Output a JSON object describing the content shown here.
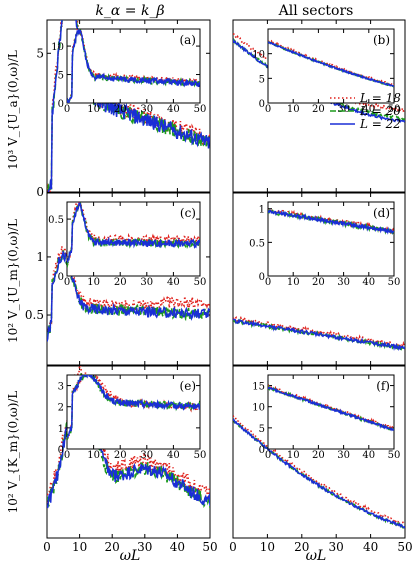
{
  "colors": {
    "L18": "#e0201b",
    "L20": "#1c9a1c",
    "L22": "#1a2ed6",
    "frame": "#000000"
  },
  "column_headers": [
    "k_α = k_β",
    "All sectors"
  ],
  "shared_x": {
    "label": "ωL",
    "ticks": [
      0,
      10,
      20,
      30,
      40,
      50
    ],
    "range": [
      0,
      50
    ]
  },
  "legend": {
    "placement": "inside panel (b), right",
    "entries": [
      "L = 18",
      "L = 20",
      "L = 22"
    ]
  },
  "chart_data": [
    {
      "type": "line",
      "id": "row1",
      "ylabel": "10³ V_{U_a}(0,ω)/L",
      "left": {
        "ylim": [
          0,
          6.2
        ],
        "yticks": [
          0,
          5,
          10
        ]
      },
      "right": {
        "ylim": [
          0,
          6.8
        ],
        "yticks": []
      },
      "insets": [
        {
          "label": "(a)",
          "ylim": [
            0,
            13
          ],
          "yticks": [
            0,
            5,
            10
          ],
          "xticks": [
            0,
            10,
            20,
            30,
            40,
            50
          ]
        },
        {
          "label": "(b)",
          "ylim": [
            0,
            15
          ],
          "yticks": [
            0,
            5,
            10
          ],
          "xticks": [
            0,
            10,
            20,
            30,
            40,
            50
          ]
        }
      ]
    },
    {
      "type": "line",
      "id": "row2",
      "ylabel": "10² V_{U_m}(0,ω)/L",
      "left": {
        "ylim": [
          0.07,
          1.55
        ],
        "yticks": [
          0.5,
          1
        ]
      },
      "right": {
        "ylim": [
          0.07,
          1.55
        ],
        "yticks": []
      },
      "insets": [
        {
          "label": "(c)",
          "ylim": [
            0,
            0.65
          ],
          "yticks": [
            0,
            0.5
          ],
          "xticks": [
            0,
            10,
            20,
            30,
            40,
            50
          ]
        },
        {
          "label": "(d)",
          "ylim": [
            0,
            1.1
          ],
          "yticks": [
            0,
            0.5,
            1
          ],
          "xticks": [
            0,
            10,
            20,
            30,
            40,
            50
          ]
        }
      ]
    },
    {
      "type": "line",
      "id": "row3",
      "ylabel": "10² V_{K_m}(0,ω)/L",
      "left": {
        "ylim": [
          0.5,
          4.0
        ],
        "yticks": []
      },
      "right": {
        "ylim": [
          0.5,
          8.5
        ],
        "yticks": []
      },
      "insets": [
        {
          "label": "(e)",
          "ylim": [
            0,
            3.5
          ],
          "yticks": [
            0,
            1,
            2,
            3
          ],
          "xticks": [
            0,
            10,
            20,
            30,
            40,
            50
          ]
        },
        {
          "label": "(f)",
          "ylim": [
            0,
            17.5
          ],
          "yticks": [
            0,
            5,
            10,
            15
          ],
          "xticks": [
            0,
            10,
            20,
            30,
            40,
            50
          ]
        }
      ]
    }
  ]
}
